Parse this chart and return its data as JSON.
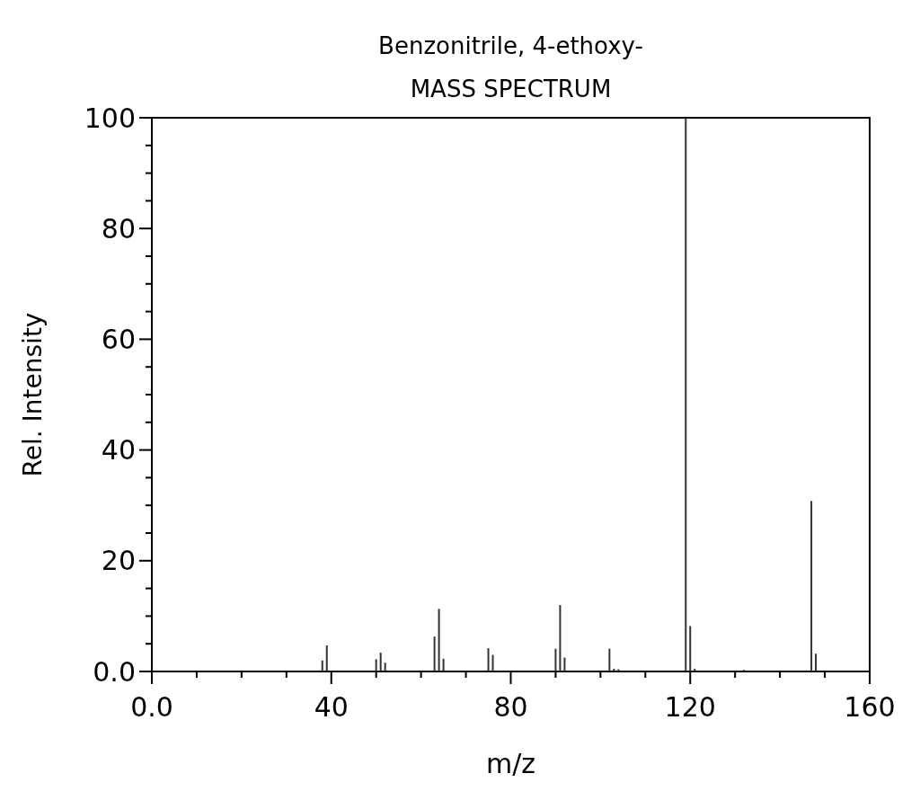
{
  "chart_data": {
    "type": "bar",
    "title": "Benzonitrile, 4-ethoxy-",
    "subtitle": "MASS SPECTRUM",
    "xlabel": "m/z",
    "ylabel": "Rel. Intensity",
    "x": [
      38,
      39,
      50,
      51,
      52,
      63,
      64,
      65,
      75,
      76,
      90,
      91,
      92,
      102,
      103,
      104,
      119,
      120,
      121,
      132,
      147,
      148
    ],
    "values": [
      2,
      4.7,
      2.2,
      3.4,
      1.6,
      6.3,
      11.3,
      2.3,
      4.2,
      3.0,
      4.1,
      12,
      2.5,
      4.1,
      0.5,
      0.4,
      100,
      8.2,
      0.5,
      0.3,
      30.8,
      3.2
    ],
    "color": "#333333",
    "xlim": [
      0,
      160
    ],
    "ylim": [
      0,
      100
    ],
    "xticks": [
      {
        "value": 0,
        "label": "0.0"
      },
      {
        "value": 10,
        "label": null
      },
      {
        "value": 20,
        "label": null
      },
      {
        "value": 30,
        "label": null
      },
      40,
      {
        "value": 50,
        "label": null
      },
      {
        "value": 60,
        "label": null
      },
      {
        "value": 70,
        "label": null
      },
      80,
      {
        "value": 90,
        "label": null
      },
      {
        "value": 100,
        "label": null
      },
      {
        "value": 110,
        "label": null
      },
      120,
      {
        "value": 130,
        "label": null
      },
      {
        "value": 140,
        "label": null
      },
      {
        "value": 150,
        "label": null
      },
      160
    ],
    "yticks": [
      {
        "value": 0,
        "label": "0.0"
      },
      {
        "value": 5,
        "label": null
      },
      {
        "value": 10,
        "label": null
      },
      {
        "value": 15,
        "label": null
      },
      20,
      {
        "value": 25,
        "label": null
      },
      {
        "value": 30,
        "label": null
      },
      {
        "value": 35,
        "label": null
      },
      40,
      {
        "value": 45,
        "label": null
      },
      {
        "value": 50,
        "label": null
      },
      {
        "value": 55,
        "label": null
      },
      60,
      {
        "value": 65,
        "label": null
      },
      {
        "value": 70,
        "label": null
      },
      {
        "value": 75,
        "label": null
      },
      80,
      {
        "value": 85,
        "label": null
      },
      {
        "value": 90,
        "label": null
      },
      {
        "value": 95,
        "label": null
      },
      100
    ],
    "grid": false
  }
}
